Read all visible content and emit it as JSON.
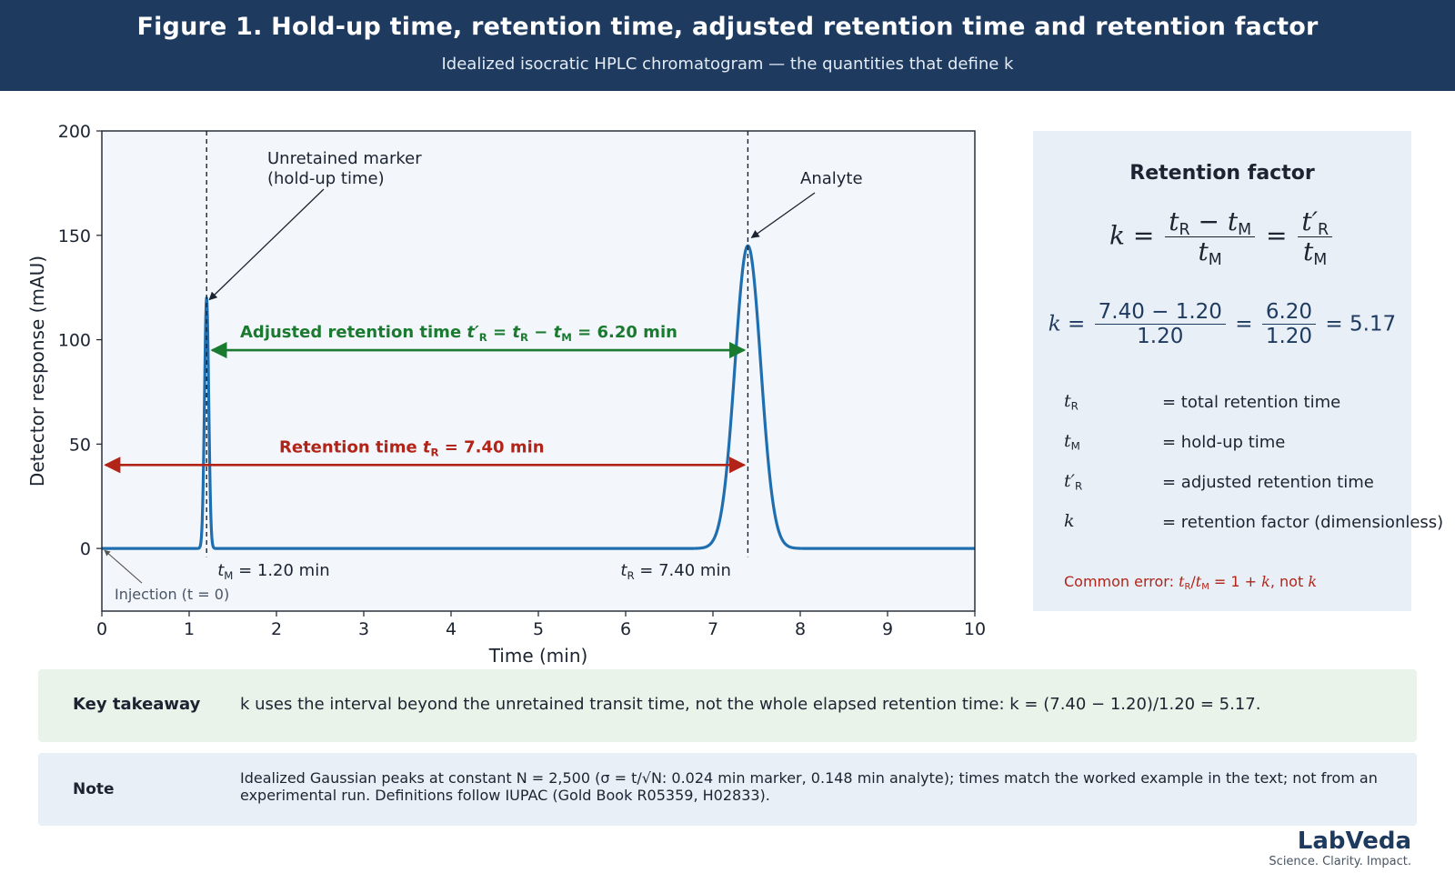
{
  "header": {
    "title": "Figure 1. Hold-up time, retention time, adjusted retention time and retention factor",
    "subtitle": "Idealized isocratic HPLC chromatogram — the quantities that define k"
  },
  "colors": {
    "header_bg": "#1e3a5f",
    "trace": "#1f6fb0",
    "retention": "#b22418",
    "adjusted": "#1a7a30",
    "plot_bg": "#f3f6fb"
  },
  "chart_data": {
    "type": "line",
    "xlabel": "Time (min)",
    "ylabel": "Detector response (mAU)",
    "xlim": [
      0,
      10
    ],
    "ylim": [
      -30,
      200
    ],
    "xticks": [
      0,
      1,
      2,
      3,
      4,
      5,
      6,
      7,
      8,
      9,
      10
    ],
    "yticks": [
      0,
      50,
      100,
      150,
      200
    ],
    "grid": false,
    "peaks": [
      {
        "center": 1.2,
        "height": 120,
        "sigma": 0.024
      },
      {
        "center": 7.4,
        "height": 145,
        "sigma": 0.148
      }
    ],
    "markers": [
      {
        "x": 1.2,
        "label": "t_M = 1.20 min"
      },
      {
        "x": 7.4,
        "label": "t_R = 7.40 min"
      }
    ],
    "intervals": [
      {
        "kind": "adjusted",
        "from": 1.2,
        "to": 7.4,
        "y": 95,
        "label": "Adjusted retention time  t′R = tR − tM = 6.20 min"
      },
      {
        "kind": "retention",
        "from": 0,
        "to": 7.4,
        "y": 40,
        "label": "Retention time  tR = 7.40 min"
      }
    ],
    "annotations": [
      {
        "text": "Unretained marker\n(hold-up time)",
        "target": [
          1.2,
          120
        ]
      },
      {
        "text": "Analyte",
        "target": [
          7.4,
          148
        ]
      },
      {
        "text": "Injection (t = 0)",
        "target": [
          0,
          0
        ]
      }
    ]
  },
  "panel": {
    "title": "Retention factor",
    "formula_text": "k = (tR − tM)/tM = t′R/tM",
    "worked_text": "k = (7.40 − 1.20)/1.20 = 6.20/1.20 = 5.17",
    "worked": {
      "num1": "7.40 − 1.20",
      "den1": "1.20",
      "num2": "6.20",
      "den2": "1.20",
      "result": "5.17"
    },
    "definitions": [
      {
        "symbol": "tR",
        "text": "= total retention time"
      },
      {
        "symbol": "tM",
        "text": "= hold-up time"
      },
      {
        "symbol": "t′R",
        "text": "= adjusted retention time"
      },
      {
        "symbol": "k",
        "text": "= retention factor (dimensionless)"
      }
    ],
    "common_error": "Common error: tR/tM = 1 + k, not k"
  },
  "takeaway": {
    "label": "Key takeaway",
    "text": "k uses the interval beyond the unretained transit time, not the whole elapsed retention time: k = (7.40 − 1.20)/1.20 = 5.17."
  },
  "note": {
    "label": "Note",
    "text": "Idealized Gaussian peaks at constant N = 2,500 (σ = t/√N: 0.024 min marker, 0.148 min analyte); times match the worked example in the text; not from an experimental run. Definitions follow IUPAC (Gold Book R05359, H02833)."
  },
  "brand": {
    "name": "LabVeda",
    "tagline": "Science. Clarity. Impact."
  }
}
